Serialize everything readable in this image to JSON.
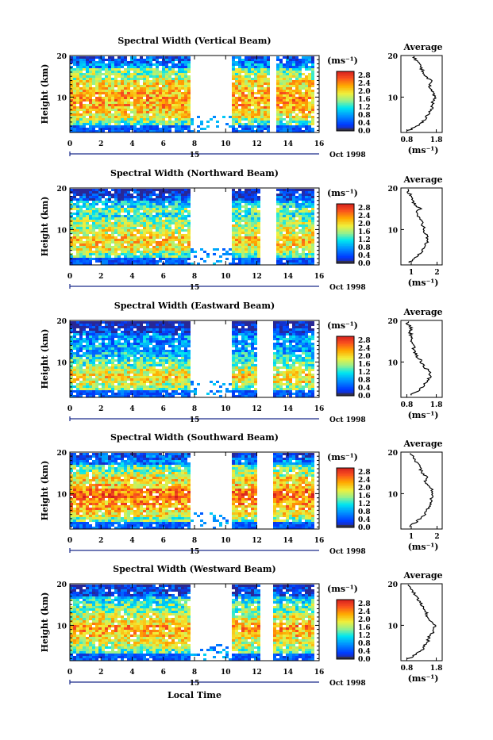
{
  "figure": {
    "xlabel": "Local Time",
    "date_label": "Oct 1998",
    "day_label": "15"
  },
  "chart_data": [
    {
      "type": "heatmap",
      "title": "Spectral Width (Vertical Beam)",
      "ylabel": "Height (km)",
      "xlabel": "Local Time",
      "xlim": [
        0,
        16
      ],
      "ylim": [
        1.5,
        20
      ],
      "x_ticks": [
        0,
        2,
        4,
        6,
        8,
        10,
        12,
        14,
        16
      ],
      "y_ticks": [
        10,
        20
      ],
      "data_gaps_hours": [
        [
          7.6,
          10.2
        ],
        [
          12.7,
          13.2
        ]
      ],
      "colorbar": {
        "unit": "(ms⁻¹)",
        "ticks": [
          "0.0",
          "0.4",
          "0.8",
          "1.2",
          "1.6",
          "2.0",
          "2.4",
          "2.8"
        ],
        "range": [
          0,
          3.0
        ]
      },
      "profile": {
        "title": "Average",
        "xlabel": "(ms⁻¹)",
        "x_ticks": [
          "0.8",
          "1.8"
        ],
        "xlim": [
          0.6,
          2.0
        ],
        "heights": [
          2,
          3,
          4,
          5,
          6,
          7,
          8,
          9,
          10,
          11,
          12,
          13,
          14,
          15,
          16,
          17,
          18,
          19,
          20
        ],
        "values": [
          0.85,
          1.15,
          1.3,
          1.45,
          1.55,
          1.62,
          1.7,
          1.68,
          1.75,
          1.7,
          1.62,
          1.55,
          1.6,
          1.45,
          1.35,
          1.3,
          1.2,
          1.1,
          1.0
        ]
      }
    },
    {
      "type": "heatmap",
      "title": "Spectral Width (Northward Beam)",
      "ylabel": "Height (km)",
      "xlabel": "Local Time",
      "xlim": [
        0,
        16
      ],
      "ylim": [
        1.5,
        20
      ],
      "x_ticks": [
        0,
        2,
        4,
        6,
        8,
        10,
        12,
        14,
        16
      ],
      "y_ticks": [
        10,
        20
      ],
      "data_gaps_hours": [
        [
          7.6,
          10.2
        ],
        [
          12.2,
          13.1
        ]
      ],
      "colorbar": {
        "unit": "(ms⁻¹)",
        "ticks": [
          "0.0",
          "0.4",
          "0.8",
          "1.2",
          "1.6",
          "2.0",
          "2.4",
          "2.8"
        ],
        "range": [
          0,
          3.0
        ]
      },
      "profile": {
        "title": "Average",
        "xlabel": "(ms⁻¹)",
        "x_ticks": [
          "1",
          "2"
        ],
        "xlim": [
          0.6,
          2.2
        ],
        "heights": [
          2,
          3,
          4,
          5,
          6,
          7,
          8,
          9,
          10,
          11,
          12,
          13,
          14,
          15,
          16,
          17,
          18,
          19,
          20
        ],
        "values": [
          0.9,
          1.1,
          1.3,
          1.45,
          1.55,
          1.6,
          1.62,
          1.55,
          1.5,
          1.45,
          1.4,
          1.3,
          1.2,
          1.35,
          1.15,
          1.05,
          1.0,
          0.9,
          0.8
        ]
      }
    },
    {
      "type": "heatmap",
      "title": "Spectral Width (Eastward Beam)",
      "ylabel": "Height (km)",
      "xlabel": "Local Time",
      "xlim": [
        0,
        16
      ],
      "ylim": [
        1.5,
        20
      ],
      "x_ticks": [
        0,
        2,
        4,
        6,
        8,
        10,
        12,
        14,
        16
      ],
      "y_ticks": [
        10,
        20
      ],
      "data_gaps_hours": [
        [
          7.6,
          10.2
        ],
        [
          11.9,
          12.9
        ]
      ],
      "colorbar": {
        "unit": "(ms⁻¹)",
        "ticks": [
          "0.0",
          "0.4",
          "0.8",
          "1.2",
          "1.6",
          "2.0",
          "2.4",
          "2.8"
        ],
        "range": [
          0,
          3.0
        ]
      },
      "profile": {
        "title": "Average",
        "xlabel": "(ms⁻¹)",
        "x_ticks": [
          "0.8",
          "1.8"
        ],
        "xlim": [
          0.6,
          2.0
        ],
        "heights": [
          2,
          3,
          4,
          5,
          6,
          7,
          8,
          9,
          10,
          11,
          12,
          13,
          14,
          15,
          16,
          17,
          18,
          19,
          20
        ],
        "values": [
          0.9,
          1.2,
          1.35,
          1.45,
          1.55,
          1.6,
          1.5,
          1.4,
          1.3,
          1.2,
          1.1,
          1.0,
          1.05,
          0.95,
          1.0,
          0.9,
          0.95,
          0.85,
          0.8
        ]
      }
    },
    {
      "type": "heatmap",
      "title": "Spectral Width (Southward Beam)",
      "ylabel": "Height (km)",
      "xlabel": "Local Time",
      "xlim": [
        0,
        16
      ],
      "ylim": [
        1.5,
        20
      ],
      "x_ticks": [
        0,
        2,
        4,
        6,
        8,
        10,
        12,
        14,
        16
      ],
      "y_ticks": [
        10,
        20
      ],
      "data_gaps_hours": [
        [
          7.6,
          10.2
        ],
        [
          11.9,
          12.9
        ]
      ],
      "colorbar": {
        "unit": "(ms⁻¹)",
        "ticks": [
          "0.0",
          "0.4",
          "0.8",
          "1.2",
          "1.6",
          "2.0",
          "2.4",
          "2.8"
        ],
        "range": [
          0,
          3.0
        ]
      },
      "profile": {
        "title": "Average",
        "xlabel": "(ms⁻¹)",
        "x_ticks": [
          "1",
          "2"
        ],
        "xlim": [
          0.6,
          2.2
        ],
        "heights": [
          2,
          3,
          4,
          5,
          6,
          7,
          8,
          9,
          10,
          11,
          12,
          13,
          14,
          15,
          16,
          17,
          18,
          19,
          20
        ],
        "values": [
          0.9,
          1.15,
          1.35,
          1.5,
          1.6,
          1.7,
          1.75,
          1.8,
          1.85,
          1.8,
          1.65,
          1.55,
          1.6,
          1.45,
          1.35,
          1.3,
          1.15,
          1.05,
          0.95
        ]
      }
    },
    {
      "type": "heatmap",
      "title": "Spectral Width (Westward Beam)",
      "ylabel": "Height (km)",
      "xlabel": "Local Time",
      "xlim": [
        0,
        16
      ],
      "ylim": [
        1.5,
        20
      ],
      "x_ticks": [
        0,
        2,
        4,
        6,
        8,
        10,
        12,
        14,
        16
      ],
      "y_ticks": [
        10,
        20
      ],
      "data_gaps_hours": [
        [
          7.6,
          10.2
        ],
        [
          12.1,
          13.0
        ]
      ],
      "colorbar": {
        "unit": "(ms⁻¹)",
        "ticks": [
          "0.0",
          "0.4",
          "0.8",
          "1.2",
          "1.6",
          "2.0",
          "2.4",
          "2.8"
        ],
        "range": [
          0,
          3.0
        ]
      },
      "profile": {
        "title": "Average",
        "xlabel": "(ms⁻¹)",
        "x_ticks": [
          "0.8",
          "1.8"
        ],
        "xlim": [
          0.6,
          2.0
        ],
        "heights": [
          2,
          3,
          4,
          5,
          6,
          7,
          8,
          9,
          10,
          11,
          12,
          13,
          14,
          15,
          16,
          17,
          18,
          19,
          20
        ],
        "values": [
          0.85,
          1.1,
          1.3,
          1.4,
          1.5,
          1.55,
          1.65,
          1.7,
          1.75,
          1.6,
          1.5,
          1.45,
          1.35,
          1.3,
          1.2,
          1.1,
          1.0,
          0.95,
          0.85
        ]
      }
    }
  ]
}
